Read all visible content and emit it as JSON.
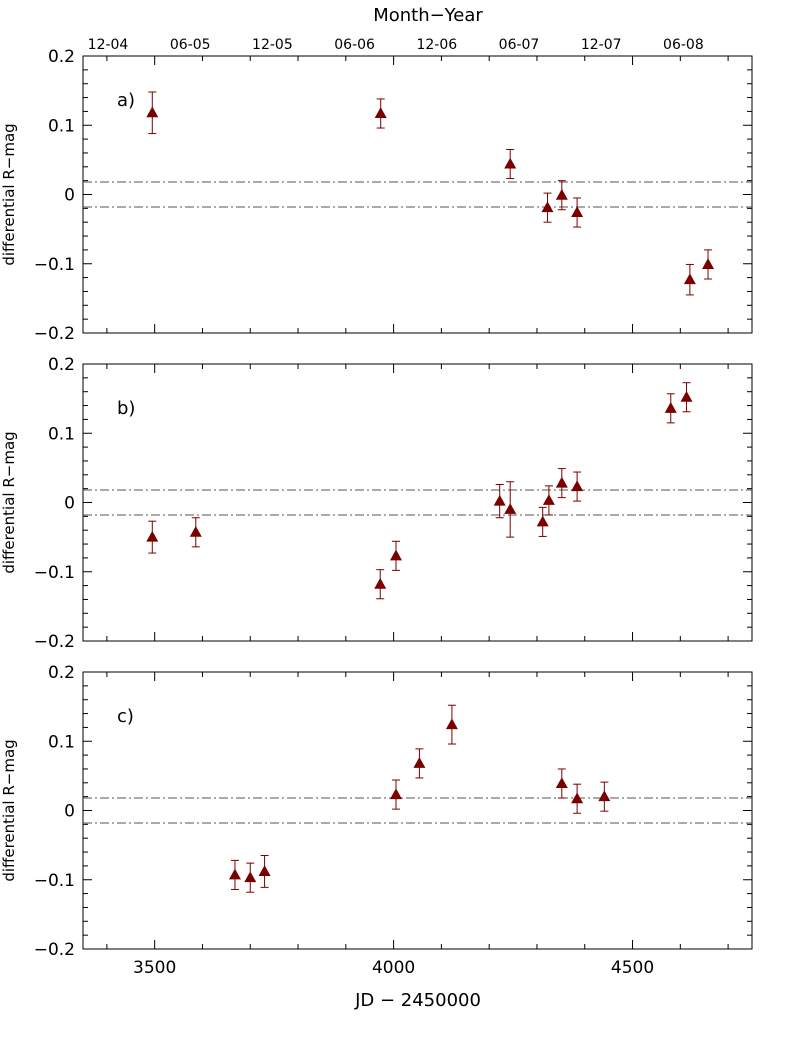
{
  "figure": {
    "top_axis_title": "Month−Year",
    "x_label": "JD − 2450000",
    "y_label": "differential R−mag",
    "top_axis_ticks": [
      "12-04",
      "06-05",
      "12-05",
      "06-06",
      "12-06",
      "06-07",
      "12-07",
      "06-08"
    ],
    "colors": {
      "marker": "#7a0000",
      "reference_line": "#555555"
    }
  },
  "chart_data": [
    {
      "type": "scatter",
      "panel_label": "a)",
      "xlabel": "JD − 2450000",
      "ylabel": "differential R−mag",
      "xlim": [
        3350,
        4750
      ],
      "ylim": [
        -0.2,
        0.2
      ],
      "x_ticks": [
        3500,
        4000,
        4500
      ],
      "y_ticks": [
        -0.2,
        -0.1,
        0,
        0.1,
        0.2
      ],
      "reference_lines": [
        0.018,
        -0.018
      ],
      "points": [
        {
          "x": 3495,
          "y": 0.118,
          "err": 0.03
        },
        {
          "x": 3973,
          "y": 0.117,
          "err": 0.021
        },
        {
          "x": 4244,
          "y": 0.044,
          "err": 0.021
        },
        {
          "x": 4322,
          "y": -0.019,
          "err": 0.021
        },
        {
          "x": 4352,
          "y": -0.001,
          "err": 0.021
        },
        {
          "x": 4384,
          "y": -0.026,
          "err": 0.021
        },
        {
          "x": 4620,
          "y": -0.123,
          "err": 0.022
        },
        {
          "x": 4658,
          "y": -0.101,
          "err": 0.021
        }
      ]
    },
    {
      "type": "scatter",
      "panel_label": "b)",
      "xlabel": "JD − 2450000",
      "ylabel": "differential R−mag",
      "xlim": [
        3350,
        4750
      ],
      "ylim": [
        -0.2,
        0.2
      ],
      "x_ticks": [
        3500,
        4000,
        4500
      ],
      "y_ticks": [
        -0.2,
        -0.1,
        0,
        0.1,
        0.2
      ],
      "reference_lines": [
        0.018,
        -0.018
      ],
      "points": [
        {
          "x": 3495,
          "y": -0.05,
          "err": 0.023
        },
        {
          "x": 3586,
          "y": -0.043,
          "err": 0.021
        },
        {
          "x": 3972,
          "y": -0.118,
          "err": 0.021
        },
        {
          "x": 4005,
          "y": -0.077,
          "err": 0.021
        },
        {
          "x": 4222,
          "y": 0.002,
          "err": 0.024
        },
        {
          "x": 4244,
          "y": -0.01,
          "err": 0.04
        },
        {
          "x": 4312,
          "y": -0.028,
          "err": 0.021
        },
        {
          "x": 4325,
          "y": 0.003,
          "err": 0.021
        },
        {
          "x": 4352,
          "y": 0.028,
          "err": 0.021
        },
        {
          "x": 4384,
          "y": 0.023,
          "err": 0.021
        },
        {
          "x": 4580,
          "y": 0.136,
          "err": 0.021
        },
        {
          "x": 4613,
          "y": 0.152,
          "err": 0.021
        }
      ]
    },
    {
      "type": "scatter",
      "panel_label": "c)",
      "xlabel": "JD − 2450000",
      "ylabel": "differential R−mag",
      "xlim": [
        3350,
        4750
      ],
      "ylim": [
        -0.2,
        0.2
      ],
      "x_ticks": [
        3500,
        4000,
        4500
      ],
      "y_ticks": [
        -0.2,
        -0.1,
        0,
        0.1,
        0.2
      ],
      "reference_lines": [
        0.018,
        -0.018
      ],
      "points": [
        {
          "x": 3668,
          "y": -0.093,
          "err": 0.021
        },
        {
          "x": 3700,
          "y": -0.097,
          "err": 0.021
        },
        {
          "x": 3730,
          "y": -0.088,
          "err": 0.023
        },
        {
          "x": 4005,
          "y": 0.023,
          "err": 0.021
        },
        {
          "x": 4054,
          "y": 0.068,
          "err": 0.021
        },
        {
          "x": 4122,
          "y": 0.124,
          "err": 0.028
        },
        {
          "x": 4352,
          "y": 0.039,
          "err": 0.021
        },
        {
          "x": 4384,
          "y": 0.017,
          "err": 0.021
        },
        {
          "x": 4441,
          "y": 0.02,
          "err": 0.021
        }
      ]
    }
  ]
}
